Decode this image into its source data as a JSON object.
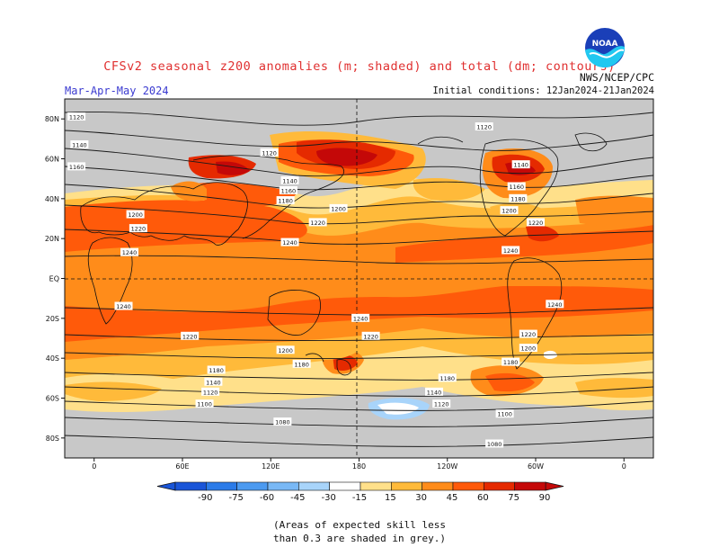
{
  "header": {
    "title": "CFSv2 seasonal z200 anomalies (m; shaded) and total (dm; contours)",
    "period": "Mar-Apr-May 2024",
    "initial_conditions": "Initial conditions: 12Jan2024-21Jan2024",
    "agency": "NWS/NCEP/CPC"
  },
  "logo": {
    "text": "NOAA",
    "icon": "noaa-logo"
  },
  "axes": {
    "lat_labels": [
      "80N",
      "60N",
      "40N",
      "20N",
      "EQ",
      "20S",
      "40S",
      "60S",
      "80S"
    ],
    "lon_labels": [
      "0",
      "60E",
      "120E",
      "180",
      "120W",
      "60W",
      "0"
    ]
  },
  "colorbar": {
    "ticks": [
      "-90",
      "-75",
      "-60",
      "-45",
      "-30",
      "-15",
      "15",
      "30",
      "45",
      "60",
      "75",
      "90"
    ],
    "colors": [
      "#1a55d8",
      "#2b7be8",
      "#4c9af0",
      "#79b8f5",
      "#a8d4fa",
      "#ffffff",
      "#ffe08a",
      "#ffba3a",
      "#ff8c1a",
      "#ff5a0a",
      "#e52a00",
      "#c40808"
    ]
  },
  "contour_labels": [
    {
      "text": "1120",
      "lon": -12,
      "lat": 81
    },
    {
      "text": "1140",
      "lon": -10,
      "lat": 67
    },
    {
      "text": "1160",
      "lon": -12,
      "lat": 56
    },
    {
      "text": "1120",
      "lon": 119,
      "lat": 63
    },
    {
      "text": "1140",
      "lon": 133,
      "lat": 49
    },
    {
      "text": "1160",
      "lon": 132,
      "lat": 44
    },
    {
      "text": "1180",
      "lon": 130,
      "lat": 39
    },
    {
      "text": "1200",
      "lon": 166,
      "lat": 35
    },
    {
      "text": "1220",
      "lon": 152,
      "lat": 28
    },
    {
      "text": "1240",
      "lon": 133,
      "lat": 18
    },
    {
      "text": "1200",
      "lon": 28,
      "lat": 32
    },
    {
      "text": "1220",
      "lon": 30,
      "lat": 25
    },
    {
      "text": "1240",
      "lon": 24,
      "lat": 13
    },
    {
      "text": "1120",
      "lon": 265,
      "lat": 76
    },
    {
      "text": "1140",
      "lon": 290,
      "lat": 57
    },
    {
      "text": "1160",
      "lon": 287,
      "lat": 46
    },
    {
      "text": "1180",
      "lon": 288,
      "lat": 40
    },
    {
      "text": "1200",
      "lon": 282,
      "lat": 34
    },
    {
      "text": "1220",
      "lon": 300,
      "lat": 28
    },
    {
      "text": "1240",
      "lon": 283,
      "lat": 14
    },
    {
      "text": "1240",
      "lon": 20,
      "lat": -14
    },
    {
      "text": "1240",
      "lon": 181,
      "lat": -20
    },
    {
      "text": "1240",
      "lon": 313,
      "lat": -13
    },
    {
      "text": "1220",
      "lon": 65,
      "lat": -29
    },
    {
      "text": "1220",
      "lon": 188,
      "lat": -29
    },
    {
      "text": "1220",
      "lon": 295,
      "lat": -28
    },
    {
      "text": "1200",
      "lon": 130,
      "lat": -36
    },
    {
      "text": "1200",
      "lon": 295,
      "lat": -35
    },
    {
      "text": "1180",
      "lon": 141,
      "lat": -43
    },
    {
      "text": "1180",
      "lon": 83,
      "lat": -46
    },
    {
      "text": "1180",
      "lon": 240,
      "lat": -50
    },
    {
      "text": "1180",
      "lon": 283,
      "lat": -42
    },
    {
      "text": "1140",
      "lon": 81,
      "lat": -52
    },
    {
      "text": "1140",
      "lon": 231,
      "lat": -57
    },
    {
      "text": "1120",
      "lon": 79,
      "lat": -57
    },
    {
      "text": "1120",
      "lon": 236,
      "lat": -63
    },
    {
      "text": "1100",
      "lon": 75,
      "lat": -63
    },
    {
      "text": "1100",
      "lon": 279,
      "lat": -68
    },
    {
      "text": "1080",
      "lon": 128,
      "lat": -72
    },
    {
      "text": "1080",
      "lon": 272,
      "lat": -83
    }
  ],
  "footnote": {
    "line1": "(Areas of expected skill less",
    "line2": "than 0.3 are shaded in grey.)"
  }
}
